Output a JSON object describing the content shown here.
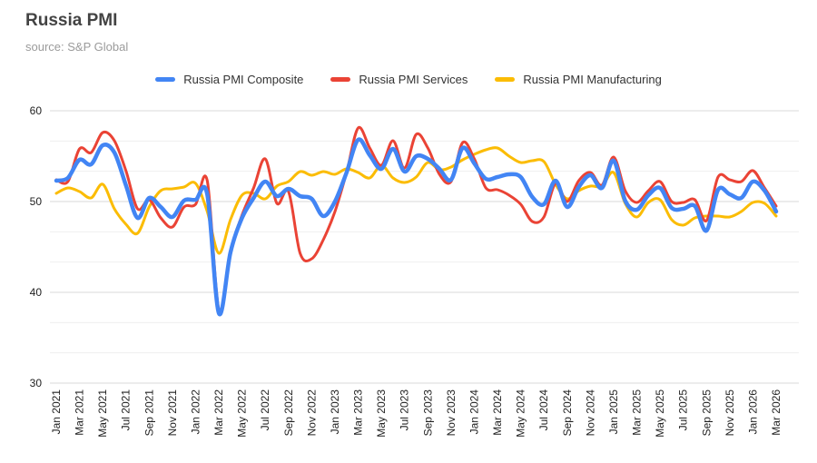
{
  "header": {
    "title": "Russia PMI",
    "source": "source: S&P Global"
  },
  "chart_data": {
    "type": "line",
    "title": "Russia PMI",
    "subtitle": "source: S&P Global",
    "xlabel": "",
    "ylabel": "",
    "ylim": [
      30,
      60
    ],
    "y_ticks": [
      30,
      40,
      50,
      60
    ],
    "y_minor_divisions": 3,
    "grid": true,
    "smooth": true,
    "legend_position": "top-center",
    "x_tick_every": 2,
    "x": [
      "Jan 2021",
      "Feb 2021",
      "Mar 2021",
      "Apr 2021",
      "May 2021",
      "Jun 2021",
      "Jul 2021",
      "Aug 2021",
      "Sep 2021",
      "Oct 2021",
      "Nov 2021",
      "Dec 2021",
      "Jan 2022",
      "Feb 2022",
      "Mar 2022",
      "Apr 2022",
      "May 2022",
      "Jun 2022",
      "Jul 2022",
      "Aug 2022",
      "Sep 2022",
      "Oct 2022",
      "Nov 2022",
      "Dec 2022",
      "Jan 2023",
      "Feb 2023",
      "Mar 2023",
      "Apr 2023",
      "May 2023",
      "Jun 2023",
      "Jul 2023",
      "Aug 2023",
      "Sep 2023",
      "Oct 2023",
      "Nov 2023",
      "Dec 2023",
      "Jan 2024",
      "Feb 2024",
      "Mar 2024",
      "Apr 2024",
      "May 2024",
      "Jun 2024",
      "Jul 2024",
      "Aug 2024",
      "Sep 2024",
      "Oct 2024",
      "Nov 2024",
      "Dec 2024",
      "Jan 2025",
      "Feb 2025",
      "Mar 2025",
      "Apr 2025",
      "May 2025",
      "Jun 2025",
      "Jul 2025",
      "Aug 2025",
      "Sep 2025",
      "Oct 2025",
      "Nov 2025",
      "Dec 2025",
      "Jan 2026",
      "Feb 2026",
      "Mar 2026"
    ],
    "series": [
      {
        "name": "Russia PMI Composite",
        "color": "#4285F4",
        "line_width": 4.5,
        "values": [
          52.3,
          52.6,
          54.6,
          54.1,
          56.2,
          55.4,
          51.8,
          48.2,
          50.4,
          49.4,
          48.3,
          50.1,
          50.2,
          50.8,
          37.7,
          44.4,
          48.2,
          50.4,
          52.2,
          50.6,
          51.4,
          50.6,
          50.3,
          48.4,
          50.0,
          53.2,
          56.8,
          55.1,
          53.6,
          55.8,
          53.3,
          55.0,
          54.7,
          53.6,
          52.4,
          55.9,
          54.2,
          52.5,
          52.7,
          53.0,
          52.7,
          50.5,
          49.7,
          52.3,
          49.4,
          51.6,
          52.9,
          51.5,
          54.5,
          50.1,
          49.1,
          50.7,
          51.5,
          49.3,
          49.2,
          49.5,
          46.8,
          51.3,
          50.8,
          50.4,
          52.2,
          51.2,
          48.9
        ]
      },
      {
        "name": "Russia PMI Services",
        "color": "#EA4335",
        "line_width": 3,
        "values": [
          52.4,
          52.2,
          55.8,
          55.4,
          57.6,
          56.7,
          53.4,
          49.2,
          50.2,
          48.2,
          47.2,
          49.4,
          49.7,
          52.3,
          38.1,
          44.5,
          48.5,
          51.5,
          54.7,
          49.8,
          51.1,
          44.3,
          43.7,
          45.8,
          48.9,
          53.2,
          58.1,
          55.9,
          54.0,
          56.7,
          53.7,
          57.4,
          55.9,
          53.0,
          52.2,
          56.5,
          54.7,
          51.5,
          51.3,
          50.7,
          49.7,
          47.8,
          48.3,
          52.0,
          50.0,
          52.3,
          53.2,
          51.8,
          54.9,
          51.2,
          49.9,
          51.2,
          52.2,
          50.0,
          49.9,
          50.2,
          47.9,
          52.7,
          52.4,
          52.2,
          53.4,
          51.5,
          49.5
        ]
      },
      {
        "name": "Russia PMI Manufacturing",
        "color": "#FBBC04",
        "line_width": 3,
        "values": [
          50.9,
          51.5,
          51.1,
          50.4,
          51.9,
          49.2,
          47.5,
          46.5,
          49.4,
          51.2,
          51.4,
          51.6,
          52.0,
          48.9,
          44.3,
          48.0,
          50.7,
          50.9,
          50.3,
          51.7,
          52.2,
          53.3,
          52.9,
          53.3,
          53.0,
          53.6,
          53.2,
          52.6,
          54.0,
          52.6,
          52.1,
          52.7,
          54.3,
          53.5,
          53.8,
          54.6,
          55.2,
          55.7,
          55.9,
          55.0,
          54.3,
          54.5,
          54.4,
          51.9,
          50.3,
          51.2,
          51.7,
          51.7,
          53.2,
          49.8,
          48.3,
          49.9,
          50.2,
          48.0,
          47.4,
          48.2,
          48.4,
          48.4,
          48.3,
          48.9,
          49.9,
          49.8,
          48.4
        ]
      }
    ],
    "style": {
      "major_grid_color": "#d9d9d9",
      "minor_grid_color": "#efefef",
      "axis_label_color": "#222222",
      "background": "#ffffff"
    }
  }
}
